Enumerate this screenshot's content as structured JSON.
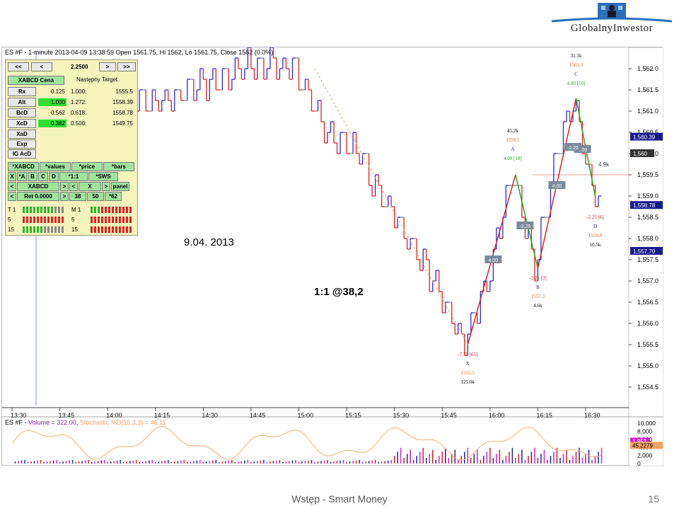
{
  "logo": {
    "text": "GlobalnyInwestor"
  },
  "chart_header": "ES #F - 1-minute 2013-04-09 13:38:59 Open 1561.75, Hi 1562, Lo 1561.75, Close 1562 (0.0%)",
  "annotations": {
    "date": "9.04. 2013",
    "ratio": "1:1 @38,2"
  },
  "panel": {
    "nav": {
      "prev_prev": "<<",
      "prev": "<",
      "value": "2.2500",
      "next": ">",
      "next_next": ">>"
    },
    "tab_title": "XABCD Cena",
    "target_title": "Następny Target",
    "rows": [
      {
        "label": "Rx",
        "value": "0.125",
        "ratio": "1.000:",
        "target": "1555.5"
      },
      {
        "label": "Alt",
        "value": "1.000",
        "ratio": "1.272:",
        "target": "1558.39"
      },
      {
        "label": "BcD",
        "value": "0.562",
        "ratio": "0.618:",
        "target": "1558.78"
      },
      {
        "label": "XcD",
        "value": "0.382",
        "ratio": "0.500:",
        "target": "1549.75"
      }
    ],
    "extra_buttons": [
      "XaD",
      "Exp",
      "IG AcD"
    ],
    "grid1": [
      "*XABCD",
      "*values",
      "*price",
      "*bars"
    ],
    "grid2": [
      "X",
      "*A",
      "B",
      "C",
      "D",
      "*1:1",
      "*SWS"
    ],
    "grid3": [
      "<",
      "XABCD",
      ">",
      "<",
      "X",
      ">",
      "panel"
    ],
    "grid4": [
      "<",
      "Ret 0.0000",
      ">",
      "38",
      "50",
      "*62"
    ],
    "trend_rows": [
      {
        "left": "T 1",
        "right": "M 1"
      },
      {
        "left": "5",
        "right": "5"
      },
      {
        "left": "15",
        "right": "15"
      }
    ]
  },
  "price_axis": {
    "ticks": [
      "1,562.0",
      "1,561.5",
      "1,561.0",
      "1,560.5",
      "1,560.0",
      "1,559.5",
      "1,559.0",
      "1,558.5",
      "1,558.0",
      "1,557.5",
      "1,557.0",
      "1,556.5",
      "1,556.0",
      "1,555.5",
      "1,555.0",
      "1,554.5"
    ],
    "labels": [
      {
        "text": "1,560.39",
        "color": "#1a1a8c"
      },
      {
        "text": "1,560",
        "color": "#333333"
      },
      {
        "text": "1,558.78",
        "color": "#1a1a8c"
      },
      {
        "text": "1,557.70",
        "color": "#1a1a8c"
      }
    ]
  },
  "time_axis": {
    "ticks": [
      "13:30",
      "13:45",
      "14:00",
      "14:15",
      "14:30",
      "14:45",
      "15:00",
      "15:15",
      "15:30",
      "15:45",
      "16:00",
      "16:15",
      "16:30"
    ]
  },
  "pattern_labels": {
    "X": {
      "ratio": "-7.75 [65]",
      "letter": "X",
      "price": "1555.5",
      "vol": "125.0k"
    },
    "A": {
      "vol": "45.2k",
      "price": "1559.5",
      "ratio": "4.00 [18]",
      "letter": "A"
    },
    "B": {
      "ratio": "-2.25 [3]",
      "letter": "B",
      "price": "1557.3",
      "vol": "4.6k"
    },
    "C": {
      "vol": "31.1k",
      "price": "1561.3",
      "letter": "C",
      "ratio": "4.00 [10]"
    },
    "D": {
      "ratio": "-2.25 [6]",
      "letter": "D",
      "price": "1559.0",
      "vol": "10.5k"
    },
    "boxes": [
      "4.00",
      "4.00",
      "-2.25",
      "4.00",
      "-2.25"
    ],
    "side_vol": "4.9k"
  },
  "lower_panel": {
    "title_prefix": "ES #F - ",
    "volume_text": "Volume = 322.00",
    "sep": ", ",
    "stoch_text": "Stochastic %D(15,3,3) = 46.11",
    "ticks": [
      "10,000",
      "8,000",
      "6,000",
      "4,000",
      "2,000",
      "0"
    ],
    "labels": [
      "1,853",
      "45.2279"
    ]
  },
  "colors": {
    "up": "#2a2ad8",
    "down": "#e02020",
    "neutral": "#8a8a8a",
    "stoch": "#f0b070"
  },
  "chart_data": {
    "type": "line",
    "title": "ES #F - 1-minute 2013-04-09",
    "xlabel": "",
    "ylabel": "",
    "ylim": [
      1554.25,
      1562.25
    ],
    "x": [
      "13:30",
      "13:45",
      "14:00",
      "14:15",
      "14:30",
      "14:45",
      "15:00",
      "15:15",
      "15:30",
      "15:45",
      "15:58",
      "16:00",
      "16:05",
      "16:10",
      "16:12",
      "16:15",
      "16:20",
      "16:25",
      "16:30",
      "16:33"
    ],
    "series": [
      {
        "name": "Close",
        "values": [
          1561.0,
          1561.5,
          1560.75,
          1561.25,
          1561.25,
          1561.75,
          1562.0,
          1562.0,
          1560.0,
          1558.0,
          1555.5,
          1556.5,
          1558.5,
          1559.5,
          1558.0,
          1557.3,
          1560.0,
          1561.3,
          1559.5,
          1559.0
        ]
      }
    ],
    "pattern": {
      "X": 1555.5,
      "A": 1559.5,
      "B": 1557.3,
      "C": 1561.3,
      "D": 1559.0
    }
  }
}
